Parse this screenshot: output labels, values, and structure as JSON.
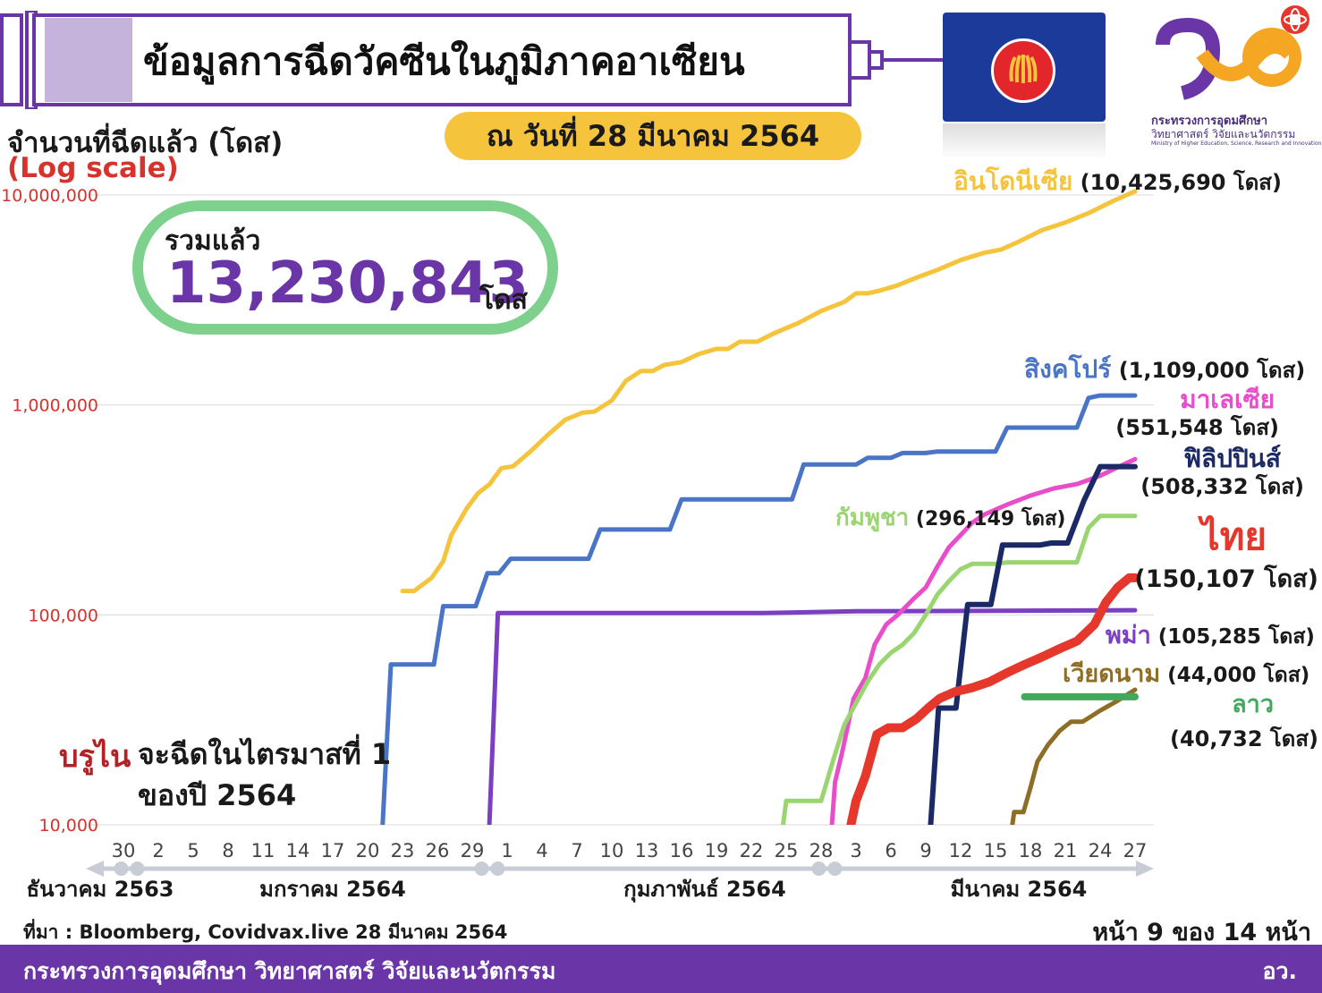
{
  "header": {
    "title": "ข้อมูลการฉีดวัคซีนในภูมิภาคอาเซียน",
    "date": "ณ วันที่ 28 มีนาคม  2564"
  },
  "logo": {
    "ministry_th": "กระทรวงการอุดมศึกษา",
    "ministry_th2": "วิทยาศาสตร์ วิจัยและนวัตกรรม",
    "ministry_en": "Ministry of Higher Education, Science, Research and Innovation"
  },
  "total": {
    "label": "รวมแล้ว",
    "value": "13,230,843",
    "unit": "โดส"
  },
  "brunei": {
    "name": "บรูไน",
    "note_line1": "จะฉีดในไตรมาสที่ 1",
    "note_line2": "ของปี 2564"
  },
  "footer": {
    "source": "ที่มา : Bloomberg, Covidvax.live 28 มีนาคม 2564",
    "page": "หน้า 9 ของ 14 หน้า",
    "ministry": "กระทรวงการอุดมศึกษา วิทยาศาสตร์ วิจัยและนวัตกรรม",
    "abbr": "อว."
  },
  "colors": {
    "purple": "#6A35A6",
    "green_box": "#7ED18D",
    "date_pill": "#F5C43C",
    "axis_red": "#D8322C"
  },
  "chart_data": {
    "type": "line",
    "ylabel": "จำนวนที่ฉีดแล้ว (โดส)",
    "yscale_label": "(Log scale)",
    "yscale": "log",
    "ylim": [
      10000,
      10000000
    ],
    "yticks": [
      "10,000",
      "100,000",
      "1,000,000",
      "10,000,000"
    ],
    "ytick_values": [
      10000,
      100000,
      1000000,
      10000000
    ],
    "x_unit": "days from 30 December 2563",
    "xlim": [
      0,
      88
    ],
    "xticks": [
      {
        "label": "30",
        "day": 0
      },
      {
        "label": "2",
        "day": 3
      },
      {
        "label": "5",
        "day": 6
      },
      {
        "label": "8",
        "day": 9
      },
      {
        "label": "11",
        "day": 12
      },
      {
        "label": "14",
        "day": 15
      },
      {
        "label": "17",
        "day": 18
      },
      {
        "label": "20",
        "day": 21
      },
      {
        "label": "23",
        "day": 24
      },
      {
        "label": "26",
        "day": 27
      },
      {
        "label": "29",
        "day": 30
      },
      {
        "label": "1",
        "day": 33
      },
      {
        "label": "4",
        "day": 36
      },
      {
        "label": "7",
        "day": 39
      },
      {
        "label": "10",
        "day": 42
      },
      {
        "label": "13",
        "day": 45
      },
      {
        "label": "16",
        "day": 48
      },
      {
        "label": "19",
        "day": 51
      },
      {
        "label": "22",
        "day": 54
      },
      {
        "label": "25",
        "day": 57
      },
      {
        "label": "28",
        "day": 60
      },
      {
        "label": "3",
        "day": 63
      },
      {
        "label": "6",
        "day": 66
      },
      {
        "label": "9",
        "day": 69
      },
      {
        "label": "12",
        "day": 72
      },
      {
        "label": "15",
        "day": 75
      },
      {
        "label": "18",
        "day": 78
      },
      {
        "label": "21",
        "day": 81
      },
      {
        "label": "24",
        "day": 84
      },
      {
        "label": "27",
        "day": 87
      }
    ],
    "months": [
      {
        "label": "ธันวาคม 2563",
        "day": -2
      },
      {
        "label": "มกราคม 2564",
        "day": 18
      },
      {
        "label": "กุมภาพันธ์ 2564",
        "day": 50
      },
      {
        "label": "มีนาคม 2564",
        "day": 77
      }
    ],
    "month_dividers": [
      0.5,
      31.5,
      60.5
    ],
    "series": [
      {
        "key": "indonesia",
        "name": "อินโดนีเซีย",
        "total": "(10,425,690 โดส)",
        "color": "#F5C43C",
        "width": 5,
        "points": [
          [
            24,
            130000
          ],
          [
            25,
            130000
          ],
          [
            26.5,
            150000
          ],
          [
            27.5,
            180000
          ],
          [
            28.2,
            240000
          ],
          [
            29.5,
            320000
          ],
          [
            30.5,
            380000
          ],
          [
            31.5,
            420000
          ],
          [
            32.5,
            500000
          ],
          [
            33.5,
            510000
          ],
          [
            35,
            600000
          ],
          [
            36.5,
            720000
          ],
          [
            38,
            850000
          ],
          [
            39.5,
            920000
          ],
          [
            40.5,
            930000
          ],
          [
            42,
            1050000
          ],
          [
            43.2,
            1300000
          ],
          [
            44.5,
            1450000
          ],
          [
            45.5,
            1450000
          ],
          [
            46.5,
            1550000
          ],
          [
            48,
            1600000
          ],
          [
            49.5,
            1750000
          ],
          [
            51,
            1850000
          ],
          [
            52,
            1850000
          ],
          [
            53,
            2000000
          ],
          [
            54.5,
            2000000
          ],
          [
            56,
            2200000
          ],
          [
            58,
            2450000
          ],
          [
            60,
            2800000
          ],
          [
            62,
            3100000
          ],
          [
            63,
            3400000
          ],
          [
            64,
            3400000
          ],
          [
            65,
            3500000
          ],
          [
            66.5,
            3700000
          ],
          [
            68,
            4000000
          ],
          [
            70,
            4400000
          ],
          [
            72,
            4900000
          ],
          [
            74,
            5300000
          ],
          [
            75.5,
            5500000
          ],
          [
            77,
            6000000
          ],
          [
            79,
            6800000
          ],
          [
            81,
            7400000
          ],
          [
            83,
            8200000
          ],
          [
            85,
            9300000
          ],
          [
            87,
            10425690
          ]
        ]
      },
      {
        "key": "singapore",
        "name": "สิงคโปร์",
        "total": "(1,109,000 โดส)",
        "color": "#4A74C5",
        "width": 5,
        "points": [
          [
            22.2,
            8000
          ],
          [
            23,
            58000
          ],
          [
            26.7,
            58000
          ],
          [
            27.5,
            110000
          ],
          [
            30.3,
            110000
          ],
          [
            31.3,
            158000
          ],
          [
            32.3,
            158000
          ],
          [
            33.3,
            185000
          ],
          [
            40,
            185000
          ],
          [
            41,
            255000
          ],
          [
            47,
            255000
          ],
          [
            48,
            355000
          ],
          [
            57.5,
            355000
          ],
          [
            58.5,
            520000
          ],
          [
            63,
            520000
          ],
          [
            64,
            560000
          ],
          [
            66,
            560000
          ],
          [
            67,
            590000
          ],
          [
            69,
            590000
          ],
          [
            70,
            600000
          ],
          [
            75,
            600000
          ],
          [
            76,
            780000
          ],
          [
            82,
            780000
          ],
          [
            83,
            1080000
          ],
          [
            84,
            1109000
          ],
          [
            87,
            1109000
          ]
        ]
      },
      {
        "key": "myanmar",
        "name": "พม่า",
        "total": "(105,285 โดส)",
        "color": "#7B3FC1",
        "width": 5,
        "points": [
          [
            31.4,
            8000
          ],
          [
            32.2,
            102000
          ],
          [
            55,
            102000
          ],
          [
            63,
            104000
          ],
          [
            87,
            105285
          ]
        ]
      },
      {
        "key": "malaysia",
        "name": "มาเลเซีย",
        "total": "(551,548 โดส)",
        "color": "#E84EC9",
        "width": 5,
        "points": [
          [
            60.8,
            8000
          ],
          [
            61.2,
            16000
          ],
          [
            61.8,
            22000
          ],
          [
            62.8,
            40000
          ],
          [
            63.8,
            50000
          ],
          [
            64.6,
            72000
          ],
          [
            65.6,
            90000
          ],
          [
            66.6,
            100000
          ],
          [
            68,
            120000
          ],
          [
            69,
            135000
          ],
          [
            70,
            170000
          ],
          [
            71,
            210000
          ],
          [
            72,
            240000
          ],
          [
            73,
            275000
          ],
          [
            74,
            300000
          ],
          [
            76,
            335000
          ],
          [
            78,
            370000
          ],
          [
            80,
            400000
          ],
          [
            82,
            420000
          ],
          [
            84,
            460000
          ],
          [
            86,
            520000
          ],
          [
            87,
            551548
          ]
        ]
      },
      {
        "key": "cambodia",
        "name": "กัมพูชา",
        "total": "(296,149 โดส)",
        "color": "#9AD572",
        "width": 5,
        "points": [
          [
            56.5,
            8000
          ],
          [
            57,
            13000
          ],
          [
            60,
            13000
          ],
          [
            61,
            20000
          ],
          [
            62,
            30000
          ],
          [
            63,
            38000
          ],
          [
            64,
            48000
          ],
          [
            65,
            58000
          ],
          [
            66,
            66000
          ],
          [
            67,
            72000
          ],
          [
            68,
            82000
          ],
          [
            69,
            100000
          ],
          [
            70,
            125000
          ],
          [
            71,
            145000
          ],
          [
            72,
            165000
          ],
          [
            73,
            175000
          ],
          [
            75,
            175000
          ],
          [
            76,
            178000
          ],
          [
            82,
            178000
          ],
          [
            83,
            260000
          ],
          [
            84,
            296149
          ],
          [
            87,
            296149
          ]
        ]
      },
      {
        "key": "philippines",
        "name": "ฟิลิปปินส์",
        "total": "(508,332 โดส)",
        "color": "#1B2A66",
        "width": 6,
        "points": [
          [
            69.3,
            8000
          ],
          [
            70.1,
            36000
          ],
          [
            71.6,
            36000
          ],
          [
            72.6,
            112000
          ],
          [
            74.6,
            112000
          ],
          [
            75.6,
            215000
          ],
          [
            78.8,
            215000
          ],
          [
            79.8,
            220000
          ],
          [
            81.2,
            220000
          ],
          [
            82.6,
            350000
          ],
          [
            84,
            508332
          ],
          [
            87,
            508332
          ]
        ]
      },
      {
        "key": "thailand",
        "name": "ไทย",
        "total": "(150,107 โดส)",
        "color": "#E5372B",
        "width": 10,
        "points": [
          [
            62.2,
            8000
          ],
          [
            63,
            13000
          ],
          [
            63.8,
            17000
          ],
          [
            64.8,
            27000
          ],
          [
            65.8,
            29000
          ],
          [
            67,
            29000
          ],
          [
            68.2,
            32000
          ],
          [
            69.2,
            36000
          ],
          [
            70.2,
            40000
          ],
          [
            71.5,
            43000
          ],
          [
            73,
            45000
          ],
          [
            74.5,
            48000
          ],
          [
            76,
            53000
          ],
          [
            77.5,
            58000
          ],
          [
            79,
            63000
          ],
          [
            80.5,
            69000
          ],
          [
            82,
            75000
          ],
          [
            83.5,
            90000
          ],
          [
            84.5,
            115000
          ],
          [
            85.5,
            135000
          ],
          [
            86.5,
            150107
          ],
          [
            87,
            150107
          ]
        ]
      },
      {
        "key": "vietnam",
        "name": "เวียดนาม",
        "total": "(44,000 โดส)",
        "color": "#8E6E24",
        "width": 5,
        "points": [
          [
            76.2,
            8000
          ],
          [
            76.6,
            11500
          ],
          [
            77.4,
            11500
          ],
          [
            78,
            15000
          ],
          [
            78.6,
            20000
          ],
          [
            79.5,
            24000
          ],
          [
            80.5,
            28000
          ],
          [
            81.5,
            31000
          ],
          [
            82.5,
            31000
          ],
          [
            84,
            35000
          ],
          [
            85.5,
            39000
          ],
          [
            87,
            44000
          ]
        ]
      },
      {
        "key": "laos",
        "name": "ลาว",
        "total": "(40,732 โดส)",
        "color": "#42A85C",
        "width": 8,
        "points": [
          [
            77.5,
            40732
          ],
          [
            87,
            40732
          ]
        ]
      }
    ]
  }
}
